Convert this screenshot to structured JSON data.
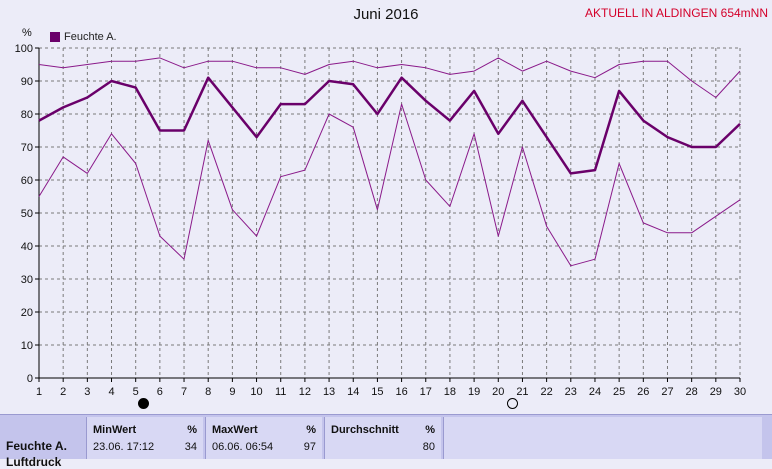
{
  "header": {
    "title": "Juni 2016",
    "station": "AKTUELL IN ALDINGEN 654mNN",
    "unit": "%"
  },
  "legend": {
    "label": "Feuchte A."
  },
  "chart_data": {
    "type": "line",
    "title": "Juni 2016",
    "ylabel": "%",
    "xlabel": "",
    "ylim": [
      0,
      100
    ],
    "yticks": [
      0,
      10,
      20,
      30,
      40,
      50,
      60,
      70,
      80,
      90,
      100
    ],
    "x": [
      1,
      2,
      3,
      4,
      5,
      6,
      7,
      8,
      9,
      10,
      11,
      12,
      13,
      14,
      15,
      16,
      17,
      18,
      19,
      20,
      21,
      22,
      23,
      24,
      25,
      26,
      27,
      28,
      29,
      30
    ],
    "grid": true,
    "legend_position": "top-left",
    "series": [
      {
        "name": "Feuchte A.",
        "role": "mean",
        "values": [
          78,
          82,
          85,
          90,
          88,
          75,
          75,
          91,
          82,
          73,
          83,
          83,
          90,
          89,
          80,
          91,
          84,
          78,
          87,
          74,
          84,
          73,
          62,
          63,
          87,
          78,
          73,
          70,
          70,
          77
        ]
      },
      {
        "role": "max",
        "values": [
          95,
          94,
          95,
          96,
          96,
          97,
          94,
          96,
          96,
          94,
          94,
          92,
          95,
          96,
          94,
          95,
          94,
          92,
          93,
          97,
          93,
          96,
          93,
          91,
          95,
          96,
          96,
          90,
          85,
          93
        ]
      },
      {
        "role": "min",
        "values": [
          55,
          67,
          62,
          74,
          65,
          43,
          36,
          72,
          51,
          43,
          61,
          63,
          80,
          76,
          51,
          83,
          60,
          52,
          74,
          43,
          70,
          46,
          34,
          36,
          65,
          47,
          44,
          44,
          49,
          54
        ]
      }
    ],
    "colors": {
      "mean": "#6a006a",
      "minmax": "#8a1a8a",
      "grid": "#7a7a7a",
      "background": "#ececf8"
    }
  },
  "stats": {
    "row_label": "Feuchte A.",
    "row_label_2": "Luftdruck",
    "min": {
      "header": "MinWert",
      "unit": "%",
      "when": "23.06.  17:12",
      "value": "34"
    },
    "max": {
      "header": "MaxWert",
      "unit": "%",
      "when": "06.06.  06:54",
      "value": "97"
    },
    "avg": {
      "header": "Durchschnitt",
      "unit": "%",
      "value": "80"
    }
  }
}
